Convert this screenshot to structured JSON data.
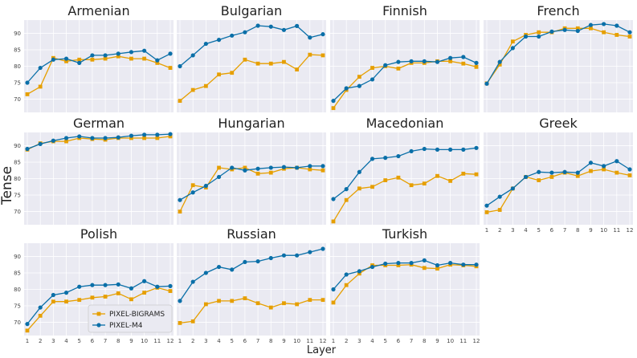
{
  "chart_data": {
    "type": "line",
    "ylabel": "Tense",
    "xlabel": "Layer",
    "x": [
      1,
      2,
      3,
      4,
      5,
      6,
      7,
      8,
      9,
      10,
      11,
      12
    ],
    "ylim": [
      66,
      94
    ],
    "yticks": [
      70,
      75,
      80,
      85,
      90
    ],
    "grid": true,
    "legend": {
      "position": "bottom-left of Polish panel",
      "entries": [
        {
          "name": "PIXEL-BIGRAMS",
          "color": "#e69f00",
          "marker": "square"
        },
        {
          "name": "PIXEL-M4",
          "color": "#0a6fa8",
          "marker": "circle"
        }
      ]
    },
    "panels": [
      {
        "title": "Armenian",
        "series": [
          {
            "name": "PIXEL-BIGRAMS",
            "values": [
              71.5,
              73.8,
              82.5,
              81.5,
              82.0,
              82.0,
              82.3,
              83.0,
              82.3,
              82.3,
              81.0,
              79.5
            ]
          },
          {
            "name": "PIXEL-M4",
            "values": [
              75.0,
              79.5,
              82.0,
              82.3,
              81.0,
              83.3,
              83.3,
              83.8,
              84.3,
              84.7,
              81.8,
              83.8
            ]
          }
        ]
      },
      {
        "title": "Bulgarian",
        "series": [
          {
            "name": "PIXEL-BIGRAMS",
            "values": [
              69.5,
              72.8,
              74.0,
              77.5,
              78.0,
              82.0,
              80.8,
              80.8,
              81.3,
              79.0,
              83.5,
              83.3
            ]
          },
          {
            "name": "PIXEL-M4",
            "values": [
              80.0,
              83.3,
              86.8,
              88.0,
              89.3,
              90.3,
              92.3,
              92.0,
              91.0,
              92.2,
              88.7,
              89.7
            ]
          }
        ]
      },
      {
        "title": "Finnish",
        "series": [
          {
            "name": "PIXEL-BIGRAMS",
            "values": [
              67.3,
              72.8,
              76.8,
              79.5,
              80.0,
              79.3,
              81.0,
              81.0,
              81.5,
              81.5,
              80.8,
              79.8
            ]
          },
          {
            "name": "PIXEL-M4",
            "values": [
              69.5,
              73.3,
              74.0,
              76.0,
              80.3,
              81.3,
              81.5,
              81.5,
              81.3,
              82.5,
              82.8,
              81.0
            ]
          }
        ]
      },
      {
        "title": "French",
        "series": [
          {
            "name": "PIXEL-BIGRAMS",
            "values": [
              74.8,
              80.5,
              87.5,
              89.5,
              90.3,
              90.3,
              91.5,
              91.5,
              91.5,
              90.3,
              89.5,
              89.0
            ]
          },
          {
            "name": "PIXEL-M4",
            "values": [
              74.7,
              81.3,
              85.5,
              89.0,
              89.0,
              90.5,
              91.0,
              90.7,
              92.5,
              92.8,
              92.3,
              90.3
            ]
          }
        ]
      },
      {
        "title": "German",
        "series": [
          {
            "name": "PIXEL-BIGRAMS",
            "values": [
              88.8,
              90.7,
              91.3,
              91.3,
              92.3,
              92.0,
              91.8,
              92.3,
              92.3,
              92.3,
              92.3,
              92.8
            ]
          },
          {
            "name": "PIXEL-M4",
            "values": [
              89.0,
              90.5,
              91.5,
              92.3,
              92.8,
              92.3,
              92.3,
              92.5,
              93.0,
              93.3,
              93.3,
              93.5
            ]
          }
        ]
      },
      {
        "title": "Hungarian",
        "series": [
          {
            "name": "PIXEL-BIGRAMS",
            "values": [
              70.0,
              78.0,
              77.3,
              83.3,
              82.8,
              83.3,
              81.5,
              81.8,
              83.0,
              83.3,
              82.8,
              82.5
            ]
          },
          {
            "name": "PIXEL-M4",
            "values": [
              73.5,
              75.8,
              77.8,
              80.5,
              83.3,
              82.5,
              83.0,
              83.3,
              83.5,
              83.3,
              83.8,
              83.8
            ]
          }
        ]
      },
      {
        "title": "Macedonian",
        "series": [
          {
            "name": "PIXEL-BIGRAMS",
            "values": [
              67.0,
              73.5,
              77.0,
              77.5,
              79.5,
              80.3,
              78.0,
              78.5,
              80.8,
              79.3,
              81.5,
              81.3
            ]
          },
          {
            "name": "PIXEL-M4",
            "values": [
              73.8,
              76.8,
              82.0,
              86.0,
              86.3,
              86.8,
              88.3,
              89.0,
              88.8,
              88.8,
              88.8,
              89.3
            ]
          }
        ]
      },
      {
        "title": "Greek",
        "series": [
          {
            "name": "PIXEL-BIGRAMS",
            "values": [
              69.8,
              70.5,
              77.0,
              80.5,
              79.5,
              80.5,
              81.8,
              80.8,
              82.3,
              82.8,
              81.8,
              81.0
            ]
          },
          {
            "name": "PIXEL-M4",
            "values": [
              71.8,
              74.5,
              77.0,
              80.5,
              82.0,
              81.8,
              82.0,
              81.8,
              84.8,
              83.8,
              85.3,
              82.8
            ]
          }
        ]
      },
      {
        "title": "Polish",
        "series": [
          {
            "name": "PIXEL-BIGRAMS",
            "values": [
              67.5,
              72.0,
              76.3,
              76.3,
              76.8,
              77.5,
              77.8,
              78.8,
              77.0,
              79.0,
              80.5,
              79.5
            ]
          },
          {
            "name": "PIXEL-M4",
            "values": [
              69.5,
              74.5,
              78.3,
              79.0,
              80.8,
              81.3,
              81.3,
              81.5,
              80.3,
              82.5,
              80.8,
              81.0
            ]
          }
        ]
      },
      {
        "title": "Russian",
        "series": [
          {
            "name": "PIXEL-BIGRAMS",
            "values": [
              69.8,
              70.3,
              75.5,
              76.5,
              76.5,
              77.3,
              75.8,
              74.5,
              75.8,
              75.5,
              76.8,
              76.8
            ]
          },
          {
            "name": "PIXEL-M4",
            "values": [
              76.5,
              82.3,
              85.0,
              86.8,
              86.0,
              88.3,
              88.5,
              89.5,
              90.3,
              90.3,
              91.3,
              92.3
            ]
          }
        ]
      },
      {
        "title": "Turkish",
        "series": [
          {
            "name": "PIXEL-BIGRAMS",
            "values": [
              76.0,
              81.3,
              84.8,
              87.3,
              87.3,
              87.3,
              87.5,
              86.5,
              86.3,
              87.5,
              87.3,
              87.0
            ]
          },
          {
            "name": "PIXEL-M4",
            "values": [
              80.0,
              84.5,
              85.5,
              86.8,
              87.8,
              88.0,
              88.0,
              88.8,
              87.3,
              88.0,
              87.5,
              87.5
            ]
          }
        ]
      }
    ]
  }
}
